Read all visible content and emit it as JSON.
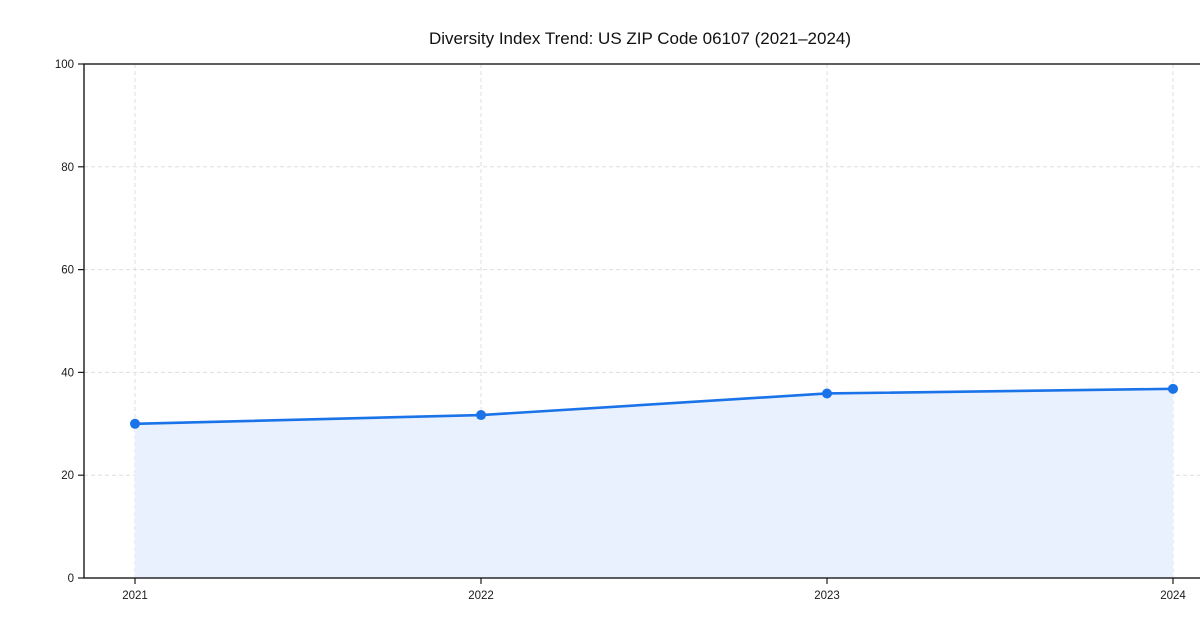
{
  "chart_data": {
    "type": "area",
    "title": "Diversity Index Trend: US ZIP Code 06107 (2021–2024)",
    "categories": [
      "2021",
      "2022",
      "2023",
      "2024"
    ],
    "series": [
      {
        "name": "Diversity Index",
        "values": [
          30.0,
          31.7,
          35.9,
          36.8
        ]
      }
    ],
    "xlabel": "",
    "ylabel": "",
    "ylim": [
      0,
      100
    ],
    "yticks": [
      0,
      20,
      40,
      60,
      80,
      100
    ],
    "grid": true,
    "grid_style": "dashed",
    "legend": "none",
    "colors": {
      "line": "#1a73e8",
      "marker": "#1a73e8",
      "area_fill": "#e8f1fd",
      "grid": "#dedede",
      "axis": "#1a1a1a",
      "tick_text": "#1a1a1a",
      "background": "#ffffff"
    }
  }
}
